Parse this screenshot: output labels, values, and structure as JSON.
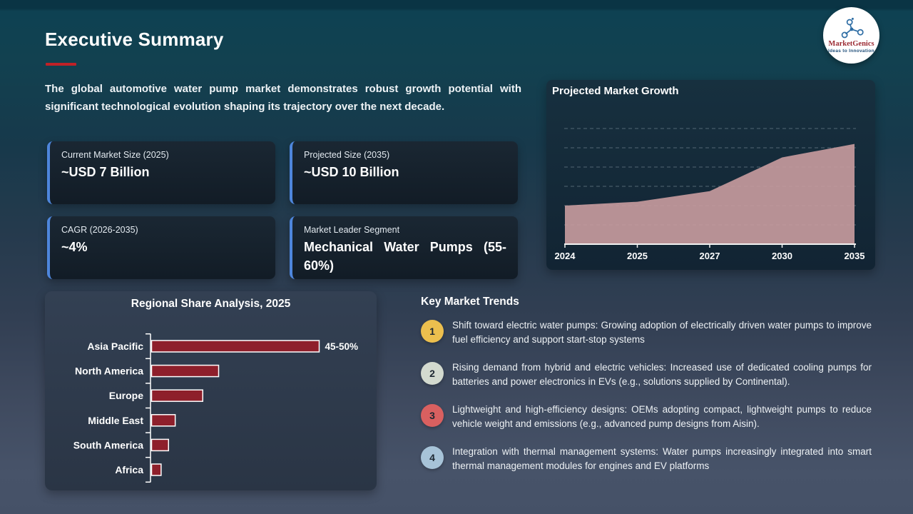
{
  "slide": {
    "title": "Executive Summary",
    "intro": "The global automotive water pump market demonstrates robust growth potential with significant technological evolution shaping its trajectory over the next decade.",
    "accent_red": "#c02127"
  },
  "logo": {
    "name": "MarketGenics",
    "tagline": "Ideas to Innovation",
    "icon": "molecule-network-icon",
    "name_color": "#9c2b33",
    "tagline_color": "#1f4e79"
  },
  "stat_cards": [
    {
      "label": "Current Market Size (2025)",
      "value": "~USD 7 Billion"
    },
    {
      "label": "Projected Size (2035)",
      "value": "~USD 10 Billion"
    },
    {
      "label": "CAGR (2026-2035)",
      "value": "~4%"
    },
    {
      "label": "Market Leader Segment",
      "value": "Mechanical Water Pumps (55-60%)"
    }
  ],
  "chart_data": [
    {
      "type": "area",
      "title": "Projected Market Growth",
      "x": [
        "2024",
        "2025",
        "2027",
        "2030",
        "2035"
      ],
      "values": [
        2.0,
        2.2,
        2.75,
        4.5,
        5.2
      ],
      "ylim": [
        0,
        6
      ],
      "xlabel": "",
      "ylabel": "",
      "grid": "dashed-horizontal",
      "legend": "none",
      "area_color": "#c59a9d",
      "note": "y-axis unlabeled; values estimated in gridline units from the plot"
    },
    {
      "type": "bar",
      "orientation": "horizontal",
      "title": "Regional Share Analysis, 2025",
      "categories": [
        "Asia Pacific",
        "North America",
        "Europe",
        "Middle East",
        "South America",
        "Africa"
      ],
      "values": [
        47.5,
        19,
        14.5,
        6.7,
        4.8,
        2.7
      ],
      "data_labels": [
        "45-50%",
        "",
        "",
        "",
        "",
        ""
      ],
      "xlim": [
        0,
        50
      ],
      "bar_color": "#8e1f2b",
      "bar_border_color": "#ffffff",
      "legend": "none",
      "note": "only Asia Pacific bar is labeled (45-50%); other values estimated from bar lengths"
    }
  ],
  "trends": {
    "heading": "Key Market Trends",
    "items": [
      {
        "num": "1",
        "color": "#ecbf4e",
        "text": "Shift toward electric water pumps: Growing adoption of electrically driven water pumps to improve fuel efficiency and support start-stop systems"
      },
      {
        "num": "2",
        "color": "#d3dacf",
        "text": "Rising demand from hybrid and electric vehicles: Increased use of dedicated cooling pumps for batteries and power electronics in EVs (e.g., solutions supplied by Continental)."
      },
      {
        "num": "3",
        "color": "#d96060",
        "text": "Lightweight and high-efficiency designs: OEMs adopting compact, lightweight pumps to reduce vehicle weight and emissions (e.g., advanced pump designs from Aisin)."
      },
      {
        "num": "4",
        "color": "#a7c3d8",
        "text": "Integration with thermal management systems: Water pumps increasingly integrated into smart thermal management modules for engines and EV platforms"
      }
    ]
  }
}
